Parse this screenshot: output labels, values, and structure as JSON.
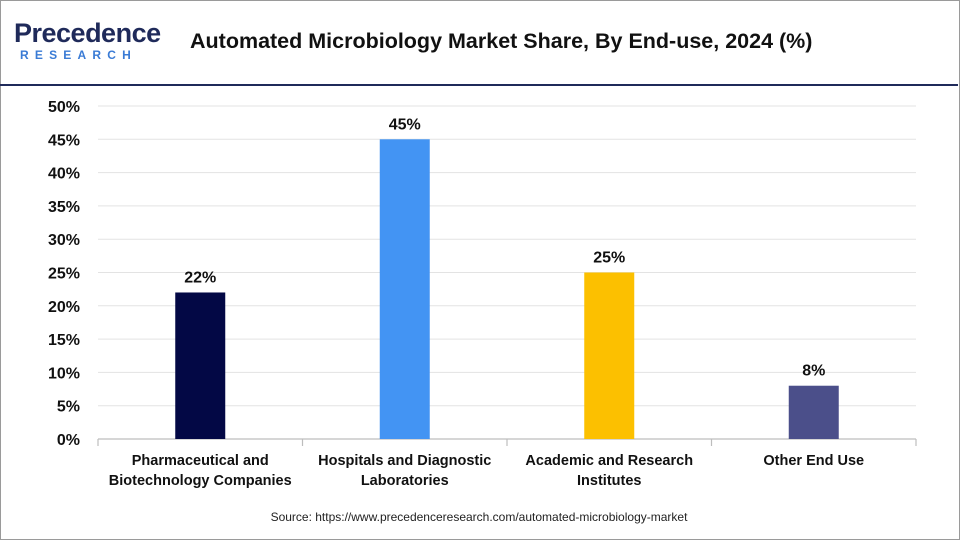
{
  "header": {
    "logo_main": "Precedence",
    "logo_sub": "RESEARCH",
    "title": "Automated Microbiology Market Share, By End-use, 2024 (%)"
  },
  "footer": {
    "source": "Source: https://www.precedenceresearch.com/automated-microbiology-market"
  },
  "colors": {
    "brand_dark": "#1f2a5a",
    "brand_light": "#3a7bd5"
  },
  "chart_data": {
    "type": "bar",
    "title": "Automated Microbiology Market Share, By End-use, 2024 (%)",
    "xlabel": "",
    "ylabel": "",
    "ylim": [
      0,
      50
    ],
    "ytick_step": 5,
    "yticks": [
      "0%",
      "5%",
      "10%",
      "15%",
      "20%",
      "25%",
      "30%",
      "35%",
      "40%",
      "45%",
      "50%"
    ],
    "grid": true,
    "categories": [
      [
        "Pharmaceutical and",
        "Biotechnology Companies"
      ],
      [
        "Hospitals and Diagnostic",
        "Laboratories"
      ],
      [
        "Academic and Research",
        "Institutes"
      ],
      [
        "Other End Use"
      ]
    ],
    "values": [
      22,
      45,
      25,
      8
    ],
    "data_labels": [
      "22%",
      "45%",
      "25%",
      "8%"
    ],
    "bar_colors": [
      "#030845",
      "#4394f3",
      "#fcc000",
      "#4b4f8a"
    ]
  }
}
